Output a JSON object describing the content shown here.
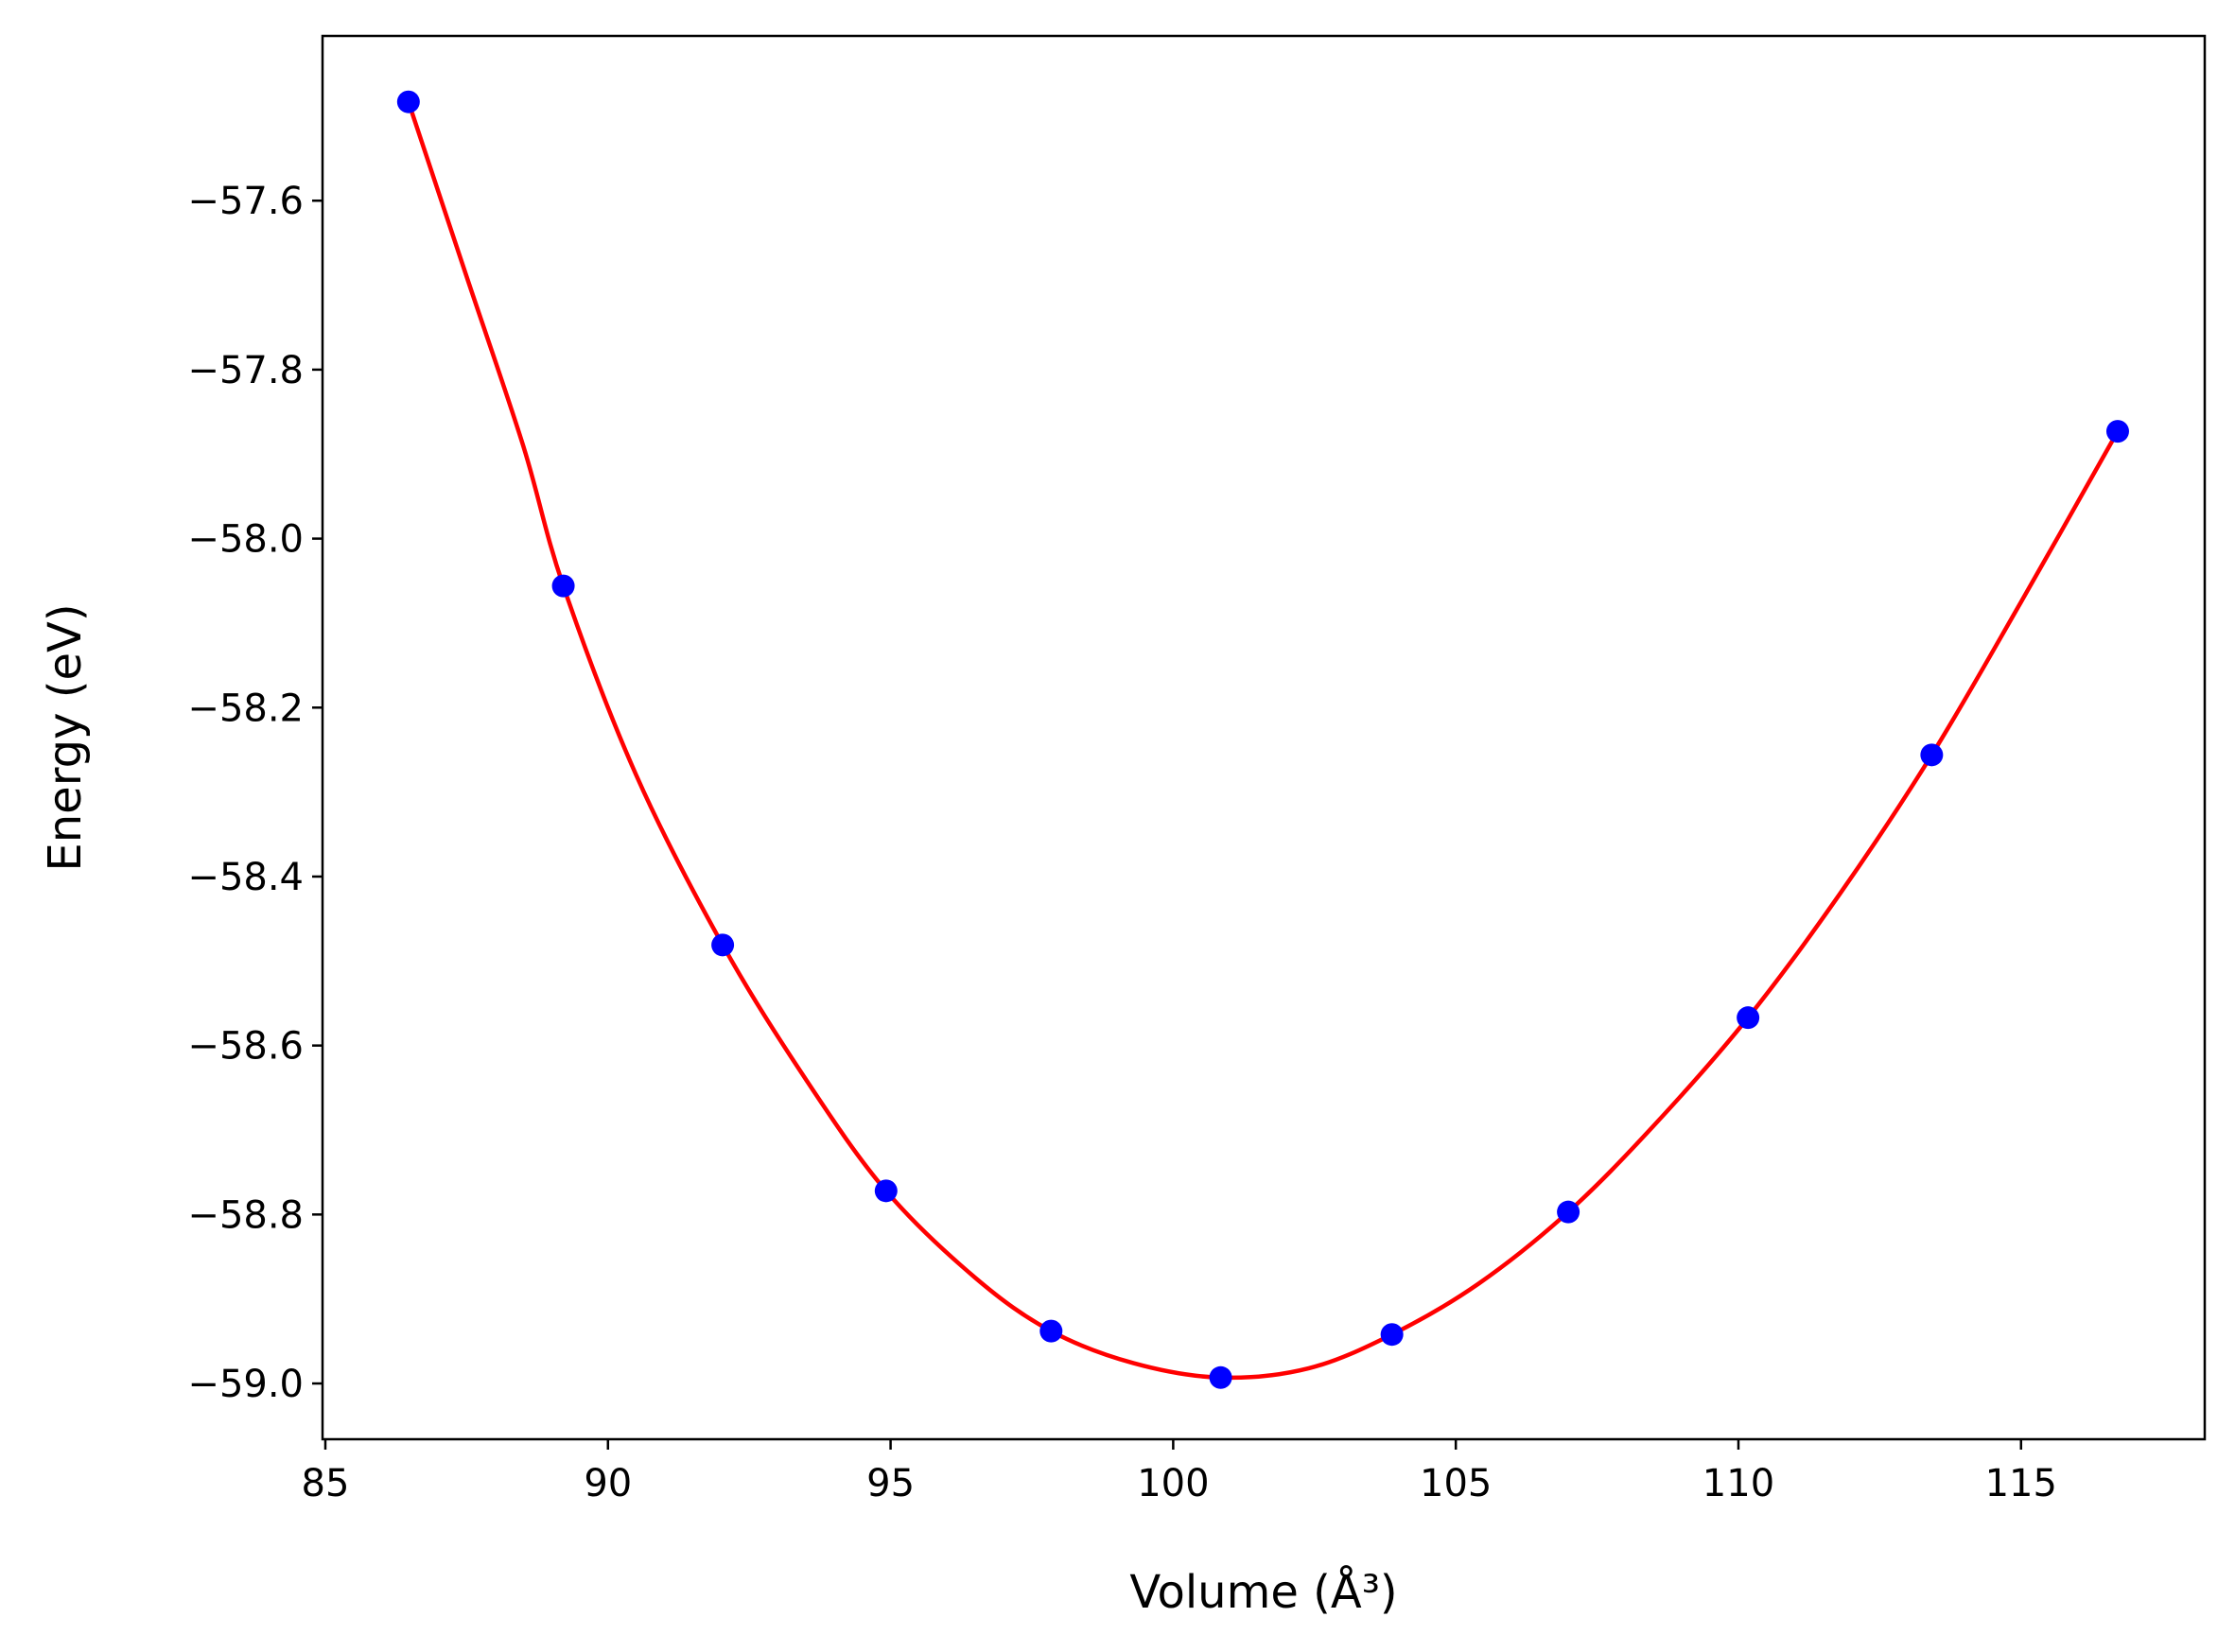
{
  "chart_data": {
    "type": "scatter",
    "title": "",
    "xlabel": "Volume (Å³)",
    "ylabel": "Energy (eV)",
    "xlim": [
      84.95,
      118.25
    ],
    "ylim": [
      -59.066,
      -57.405
    ],
    "xticks": [
      85,
      90,
      95,
      100,
      105,
      110,
      115
    ],
    "yticks": [
      -59.0,
      -58.8,
      -58.6,
      -58.4,
      -58.2,
      -58.0,
      -57.8,
      -57.6
    ],
    "x_tick_labels": [
      "85",
      "90",
      "95",
      "100",
      "105",
      "110",
      "115"
    ],
    "y_tick_labels": [
      "−59.0",
      "−58.8",
      "−58.6",
      "−58.4",
      "−58.2",
      "−58.0",
      "−57.8",
      "−57.6"
    ],
    "grid": false,
    "series": [
      {
        "kind": "points",
        "color": "#0000ff",
        "x": [
          86.47,
          89.21,
          92.03,
          94.92,
          97.84,
          100.84,
          103.87,
          106.99,
          110.17,
          113.42,
          116.71
        ],
        "y": [
          -57.483,
          -58.056,
          -58.481,
          -58.772,
          -58.938,
          -58.993,
          -58.942,
          -58.797,
          -58.567,
          -58.256,
          -57.873
        ]
      },
      {
        "kind": "fit-curve",
        "color": "#ff0000",
        "x": [
          86.47,
          87.5,
          88.5,
          89.21,
          90.5,
          92.03,
          93.5,
          94.92,
          96.5,
          97.84,
          99.3,
          100.84,
          102.4,
          103.87,
          105.4,
          106.99,
          108.5,
          110.17,
          111.8,
          113.42,
          115.0,
          116.71
        ],
        "y": [
          -57.483,
          -57.69,
          -57.89,
          -58.056,
          -58.28,
          -58.481,
          -58.64,
          -58.772,
          -58.875,
          -58.938,
          -58.976,
          -58.993,
          -58.982,
          -58.942,
          -58.882,
          -58.797,
          -58.695,
          -58.567,
          -58.42,
          -58.256,
          -58.075,
          -57.873
        ]
      }
    ]
  }
}
